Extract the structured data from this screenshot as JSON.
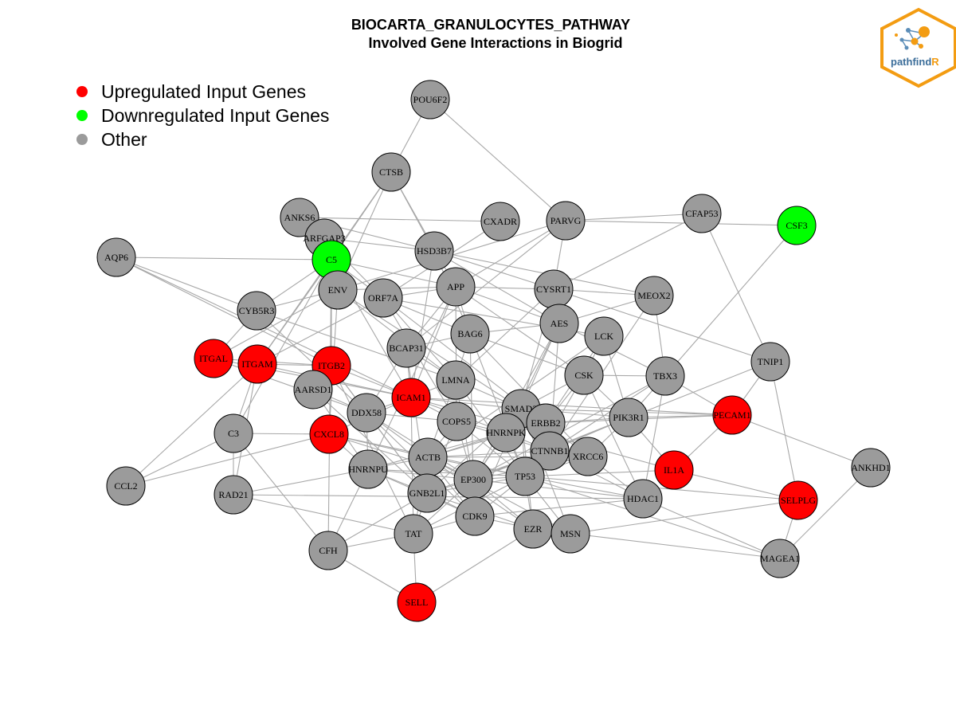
{
  "title": {
    "line1": "BIOCARTA_GRANULOCYTES_PATHWAY",
    "line2": "Involved Gene Interactions in Biogrid"
  },
  "legend": [
    {
      "label": "Upregulated Input Genes",
      "color": "#ff0000"
    },
    {
      "label": "Downregulated Input Genes",
      "color": "#00ff00"
    },
    {
      "label": "Other",
      "color": "#9b9b9b"
    }
  ],
  "logo": {
    "text_main": "pathfind",
    "text_accent": "R",
    "accent_color": "#f39c12"
  },
  "colors": {
    "up": "#ff0000",
    "down": "#00ff00",
    "other": "#9b9b9b",
    "edge": "#a8a8a8"
  },
  "nodes": [
    {
      "id": "POU6F2",
      "status": "other"
    },
    {
      "id": "CTSB",
      "status": "other"
    },
    {
      "id": "ANKS6",
      "status": "other"
    },
    {
      "id": "ARFGAP3",
      "status": "other"
    },
    {
      "id": "CXADR",
      "status": "other"
    },
    {
      "id": "PARVG",
      "status": "other"
    },
    {
      "id": "CFAP53",
      "status": "other"
    },
    {
      "id": "CSF3",
      "status": "down"
    },
    {
      "id": "AQP6",
      "status": "other"
    },
    {
      "id": "C5",
      "status": "down"
    },
    {
      "id": "HSD3B7",
      "status": "other"
    },
    {
      "id": "ENV",
      "status": "other"
    },
    {
      "id": "ORF7A",
      "status": "other"
    },
    {
      "id": "APP",
      "status": "other"
    },
    {
      "id": "CYSRT1",
      "status": "other"
    },
    {
      "id": "MEOX2",
      "status": "other"
    },
    {
      "id": "CYB5R3",
      "status": "other"
    },
    {
      "id": "AES",
      "status": "other"
    },
    {
      "id": "BAG6",
      "status": "other"
    },
    {
      "id": "LCK",
      "status": "other"
    },
    {
      "id": "BCAP31",
      "status": "other"
    },
    {
      "id": "ITGAL",
      "status": "up"
    },
    {
      "id": "ITGAM",
      "status": "up"
    },
    {
      "id": "ITGB2",
      "status": "up"
    },
    {
      "id": "TNIP1",
      "status": "other"
    },
    {
      "id": "CSK",
      "status": "other"
    },
    {
      "id": "TBX3",
      "status": "other"
    },
    {
      "id": "LMNA",
      "status": "other"
    },
    {
      "id": "AARSD1",
      "status": "other"
    },
    {
      "id": "ICAM1",
      "status": "up"
    },
    {
      "id": "DDX58",
      "status": "other"
    },
    {
      "id": "SMAD3",
      "status": "other"
    },
    {
      "id": "PECAM1",
      "status": "up"
    },
    {
      "id": "PIK3R1",
      "status": "other"
    },
    {
      "id": "COPS5",
      "status": "other"
    },
    {
      "id": "ERBB2",
      "status": "other"
    },
    {
      "id": "HNRNPK",
      "status": "other"
    },
    {
      "id": "C3",
      "status": "other"
    },
    {
      "id": "CXCL8",
      "status": "up"
    },
    {
      "id": "CTNNB1",
      "status": "other"
    },
    {
      "id": "XRCC6",
      "status": "other"
    },
    {
      "id": "ACTB",
      "status": "other"
    },
    {
      "id": "HNRNPU",
      "status": "other"
    },
    {
      "id": "IL1A",
      "status": "up"
    },
    {
      "id": "ANKHD1",
      "status": "other"
    },
    {
      "id": "EP300",
      "status": "other"
    },
    {
      "id": "TP53",
      "status": "other"
    },
    {
      "id": "CCL2",
      "status": "other"
    },
    {
      "id": "GNB2L1",
      "status": "other"
    },
    {
      "id": "RAD21",
      "status": "other"
    },
    {
      "id": "HDAC1",
      "status": "other"
    },
    {
      "id": "SELPLG",
      "status": "up"
    },
    {
      "id": "CDK9",
      "status": "other"
    },
    {
      "id": "EZR",
      "status": "other"
    },
    {
      "id": "TAT",
      "status": "other"
    },
    {
      "id": "MSN",
      "status": "other"
    },
    {
      "id": "CFH",
      "status": "other"
    },
    {
      "id": "MAGEA1",
      "status": "other"
    },
    {
      "id": "SELL",
      "status": "up"
    }
  ],
  "edges": [
    [
      "POU6F2",
      "CTSB"
    ],
    [
      "POU6F2",
      "PARVG"
    ],
    [
      "CTSB",
      "C5"
    ],
    [
      "CTSB",
      "HSD3B7"
    ],
    [
      "CTSB",
      "APP"
    ],
    [
      "CTSB",
      "ENV"
    ],
    [
      "CTSB",
      "ITGAM"
    ],
    [
      "ANKS6",
      "CXADR"
    ],
    [
      "ANKS6",
      "HSD3B7"
    ],
    [
      "ARFGAP3",
      "HSD3B7"
    ],
    [
      "ARFGAP3",
      "ORF7A"
    ],
    [
      "CXADR",
      "ORF7A"
    ],
    [
      "PARVG",
      "CFAP53"
    ],
    [
      "PARVG",
      "CSF3"
    ],
    [
      "PARVG",
      "CYSRT1"
    ],
    [
      "PARVG",
      "ENV"
    ],
    [
      "PARVG",
      "APP"
    ],
    [
      "PARVG",
      "BCAP31"
    ],
    [
      "CFAP53",
      "CYSRT1"
    ],
    [
      "CFAP53",
      "TNIP1"
    ],
    [
      "CSF3",
      "TBX3"
    ],
    [
      "AQP6",
      "C5"
    ],
    [
      "AQP6",
      "CYB5R3"
    ],
    [
      "AQP6",
      "ITGB2"
    ],
    [
      "AQP6",
      "ICAM1"
    ],
    [
      "C5",
      "C3"
    ],
    [
      "C5",
      "CFH"
    ],
    [
      "C5",
      "CYB5R3"
    ],
    [
      "C5",
      "ICAM1"
    ],
    [
      "C5",
      "ITGB2"
    ],
    [
      "C5",
      "ITGAM"
    ],
    [
      "C5",
      "ORF7A"
    ],
    [
      "C5",
      "APP"
    ],
    [
      "HSD3B7",
      "CYSRT1"
    ],
    [
      "HSD3B7",
      "MEOX2"
    ],
    [
      "HSD3B7",
      "ICAM1"
    ],
    [
      "HSD3B7",
      "BAG6"
    ],
    [
      "HSD3B7",
      "AES"
    ],
    [
      "ENV",
      "CYB5R3"
    ],
    [
      "ENV",
      "APP"
    ],
    [
      "ENV",
      "LMNA"
    ],
    [
      "ENV",
      "SMAD3"
    ],
    [
      "ENV",
      "CXCL8"
    ],
    [
      "ENV",
      "ITGAL"
    ],
    [
      "ORF7A",
      "APP"
    ],
    [
      "ORF7A",
      "BAG6"
    ],
    [
      "ORF7A",
      "LCK"
    ],
    [
      "ORF7A",
      "LMNA"
    ],
    [
      "ORF7A",
      "COPS5"
    ],
    [
      "ORF7A",
      "ITGAM"
    ],
    [
      "ORF7A",
      "ERBB2"
    ],
    [
      "APP",
      "CYSRT1"
    ],
    [
      "APP",
      "AES"
    ],
    [
      "APP",
      "BAG6"
    ],
    [
      "APP",
      "BCAP31"
    ],
    [
      "APP",
      "ICAM1"
    ],
    [
      "APP",
      "COPS5"
    ],
    [
      "APP",
      "HNRNPU"
    ],
    [
      "APP",
      "CSK"
    ],
    [
      "CYSRT1",
      "MEOX2"
    ],
    [
      "CYSRT1",
      "AES"
    ],
    [
      "CYSRT1",
      "TNIP1"
    ],
    [
      "CYSRT1",
      "LMNA"
    ],
    [
      "CYSRT1",
      "SMAD3"
    ],
    [
      "MEOX2",
      "TBX3"
    ],
    [
      "MEOX2",
      "CTNNB1"
    ],
    [
      "MEOX2",
      "AES"
    ],
    [
      "CYB5R3",
      "ITGAL"
    ],
    [
      "CYB5R3",
      "LMNA"
    ],
    [
      "CYB5R3",
      "DDX58"
    ],
    [
      "AES",
      "BAG6"
    ],
    [
      "AES",
      "TBX3"
    ],
    [
      "AES",
      "CTNNB1"
    ],
    [
      "AES",
      "SMAD3"
    ],
    [
      "AES",
      "HNRNPK"
    ],
    [
      "AES",
      "EP300"
    ],
    [
      "BAG6",
      "BCAP31"
    ],
    [
      "BAG6",
      "LMNA"
    ],
    [
      "BAG6",
      "TP53"
    ],
    [
      "BAG6",
      "XRCC6"
    ],
    [
      "BAG6",
      "CSK"
    ],
    [
      "BAG6",
      "EP300"
    ],
    [
      "LCK",
      "CSK"
    ],
    [
      "LCK",
      "PIK3R1"
    ],
    [
      "LCK",
      "ERBB2"
    ],
    [
      "LCK",
      "ACTB"
    ],
    [
      "BCAP31",
      "LMNA"
    ],
    [
      "BCAP31",
      "ICAM1"
    ],
    [
      "BCAP31",
      "GNB2L1"
    ],
    [
      "BCAP31",
      "DDX58"
    ],
    [
      "ITGAL",
      "ITGB2"
    ],
    [
      "ITGAL",
      "ICAM1"
    ],
    [
      "ITGAL",
      "DDX58"
    ],
    [
      "ITGAM",
      "ITGB2"
    ],
    [
      "ITGAM",
      "C3"
    ],
    [
      "ITGAM",
      "RAD21"
    ],
    [
      "ITGAM",
      "ICAM1"
    ],
    [
      "ITGAM",
      "CCL2"
    ],
    [
      "ITGB2",
      "ICAM1"
    ],
    [
      "ITGB2",
      "AARSD1"
    ],
    [
      "ITGB2",
      "DDX58"
    ],
    [
      "ITGB2",
      "GNB2L1"
    ],
    [
      "ITGB2",
      "TAT"
    ],
    [
      "TNIP1",
      "PECAM1"
    ],
    [
      "TNIP1",
      "SELPLG"
    ],
    [
      "TNIP1",
      "EP300"
    ],
    [
      "CSK",
      "TBX3"
    ],
    [
      "CSK",
      "PIK3R1"
    ],
    [
      "CSK",
      "SMAD3"
    ],
    [
      "CSK",
      "ERBB2"
    ],
    [
      "CSK",
      "TP53"
    ],
    [
      "CSK",
      "HDAC1"
    ],
    [
      "TBX3",
      "PECAM1"
    ],
    [
      "TBX3",
      "PIK3R1"
    ],
    [
      "TBX3",
      "HDAC1"
    ],
    [
      "TBX3",
      "EP300"
    ],
    [
      "TBX3",
      "CTNNB1"
    ],
    [
      "LMNA",
      "ICAM1"
    ],
    [
      "LMNA",
      "SMAD3"
    ],
    [
      "LMNA",
      "COPS5"
    ],
    [
      "LMNA",
      "ACTB"
    ],
    [
      "LMNA",
      "EP300"
    ],
    [
      "LMNA",
      "TP53"
    ],
    [
      "AARSD1",
      "DDX58"
    ],
    [
      "AARSD1",
      "HNRNPU"
    ],
    [
      "AARSD1",
      "GNB2L1"
    ],
    [
      "ICAM1",
      "DDX58"
    ],
    [
      "ICAM1",
      "COPS5"
    ],
    [
      "ICAM1",
      "SMAD3"
    ],
    [
      "ICAM1",
      "HNRNPK"
    ],
    [
      "ICAM1",
      "IL1A"
    ],
    [
      "ICAM1",
      "PECAM1"
    ],
    [
      "ICAM1",
      "CXCL8"
    ],
    [
      "ICAM1",
      "TAT"
    ],
    [
      "DDX58",
      "COPS5"
    ],
    [
      "DDX58",
      "ACTB"
    ],
    [
      "DDX58",
      "HNRNPU"
    ],
    [
      "DDX58",
      "EP300"
    ],
    [
      "DDX58",
      "CDK9"
    ],
    [
      "DDX58",
      "GNB2L1"
    ],
    [
      "SMAD3",
      "ERBB2"
    ],
    [
      "SMAD3",
      "HNRNPK"
    ],
    [
      "SMAD3",
      "CTNNB1"
    ],
    [
      "SMAD3",
      "EP300"
    ],
    [
      "SMAD3",
      "TP53"
    ],
    [
      "SMAD3",
      "PIK3R1"
    ],
    [
      "SMAD3",
      "PECAM1"
    ],
    [
      "SMAD3",
      "CDK9"
    ],
    [
      "SMAD3",
      "EZR"
    ],
    [
      "SMAD3",
      "GNB2L1"
    ],
    [
      "SMAD3",
      "MSN"
    ],
    [
      "PECAM1",
      "PIK3R1"
    ],
    [
      "PECAM1",
      "IL1A"
    ],
    [
      "PECAM1",
      "ANKHD1"
    ],
    [
      "PECAM1",
      "ERBB2"
    ],
    [
      "PIK3R1",
      "ERBB2"
    ],
    [
      "PIK3R1",
      "XRCC6"
    ],
    [
      "PIK3R1",
      "CTNNB1"
    ],
    [
      "PIK3R1",
      "EP300"
    ],
    [
      "PIK3R1",
      "IL1A"
    ],
    [
      "COPS5",
      "HNRNPK"
    ],
    [
      "COPS5",
      "ACTB"
    ],
    [
      "COPS5",
      "EP300"
    ],
    [
      "COPS5",
      "TP53"
    ],
    [
      "COPS5",
      "GNB2L1"
    ],
    [
      "COPS5",
      "CTNNB1"
    ],
    [
      "ERBB2",
      "HNRNPK"
    ],
    [
      "ERBB2",
      "CTNNB1"
    ],
    [
      "ERBB2",
      "TP53"
    ],
    [
      "ERBB2",
      "XRCC6"
    ],
    [
      "ERBB2",
      "ACTB"
    ],
    [
      "HNRNPK",
      "CTNNB1"
    ],
    [
      "HNRNPK",
      "TP53"
    ],
    [
      "HNRNPK",
      "EP300"
    ],
    [
      "HNRNPK",
      "ACTB"
    ],
    [
      "HNRNPK",
      "HNRNPU"
    ],
    [
      "C3",
      "CFH"
    ],
    [
      "C3",
      "CCL2"
    ],
    [
      "C3",
      "RAD21"
    ],
    [
      "C3",
      "CXCL8"
    ],
    [
      "CXCL8",
      "ACTB"
    ],
    [
      "CXCL8",
      "HNRNPU"
    ],
    [
      "CXCL8",
      "TP53"
    ],
    [
      "CXCL8",
      "EP300"
    ],
    [
      "CXCL8",
      "CCL2"
    ],
    [
      "CTNNB1",
      "XRCC6"
    ],
    [
      "CTNNB1",
      "TP53"
    ],
    [
      "CTNNB1",
      "EP300"
    ],
    [
      "CTNNB1",
      "HDAC1"
    ],
    [
      "CTNNB1",
      "ACTB"
    ],
    [
      "CTNNB1",
      "GNB2L1"
    ],
    [
      "XRCC6",
      "TP53"
    ],
    [
      "XRCC6",
      "HDAC1"
    ],
    [
      "XRCC6",
      "EP300"
    ],
    [
      "XRCC6",
      "ACTB"
    ],
    [
      "ACTB",
      "HNRNPU"
    ],
    [
      "ACTB",
      "EP300"
    ],
    [
      "ACTB",
      "GNB2L1"
    ],
    [
      "ACTB",
      "TP53"
    ],
    [
      "ACTB",
      "CDK9"
    ],
    [
      "ACTB",
      "EZR"
    ],
    [
      "ACTB",
      "MSN"
    ],
    [
      "ACTB",
      "TAT"
    ],
    [
      "HNRNPU",
      "EP300"
    ],
    [
      "HNRNPU",
      "GNB2L1"
    ],
    [
      "HNRNPU",
      "TP53"
    ],
    [
      "HNRNPU",
      "CDK9"
    ],
    [
      "HNRNPU",
      "RAD21"
    ],
    [
      "HNRNPU",
      "CFH"
    ],
    [
      "IL1A",
      "SELPLG"
    ],
    [
      "IL1A",
      "TP53"
    ],
    [
      "ANKHD1",
      "MAGEA1"
    ],
    [
      "EP300",
      "TP53"
    ],
    [
      "EP300",
      "GNB2L1"
    ],
    [
      "EP300",
      "CDK9"
    ],
    [
      "EP300",
      "HDAC1"
    ],
    [
      "EP300",
      "EZR"
    ],
    [
      "EP300",
      "TAT"
    ],
    [
      "TP53",
      "HDAC1"
    ],
    [
      "TP53",
      "CDK9"
    ],
    [
      "TP53",
      "EZR"
    ],
    [
      "TP53",
      "MSN"
    ],
    [
      "TP53",
      "MAGEA1"
    ],
    [
      "TP53",
      "GNB2L1"
    ],
    [
      "TP53",
      "TAT"
    ],
    [
      "TP53",
      "SELPLG"
    ],
    [
      "GNB2L1",
      "CDK9"
    ],
    [
      "GNB2L1",
      "TAT"
    ],
    [
      "GNB2L1",
      "EZR"
    ],
    [
      "GNB2L1",
      "CFH"
    ],
    [
      "RAD21",
      "HDAC1"
    ],
    [
      "RAD21",
      "TAT"
    ],
    [
      "HDAC1",
      "CDK9"
    ],
    [
      "HDAC1",
      "MAGEA1"
    ],
    [
      "SELPLG",
      "MAGEA1"
    ],
    [
      "SELPLG",
      "MSN"
    ],
    [
      "CDK9",
      "EZR"
    ],
    [
      "CDK9",
      "TAT"
    ],
    [
      "EZR",
      "MSN"
    ],
    [
      "EZR",
      "MAGEA1"
    ],
    [
      "TAT",
      "SELL"
    ],
    [
      "TAT",
      "CFH"
    ],
    [
      "CFH",
      "SELL"
    ],
    [
      "SELL",
      "EZR"
    ]
  ]
}
